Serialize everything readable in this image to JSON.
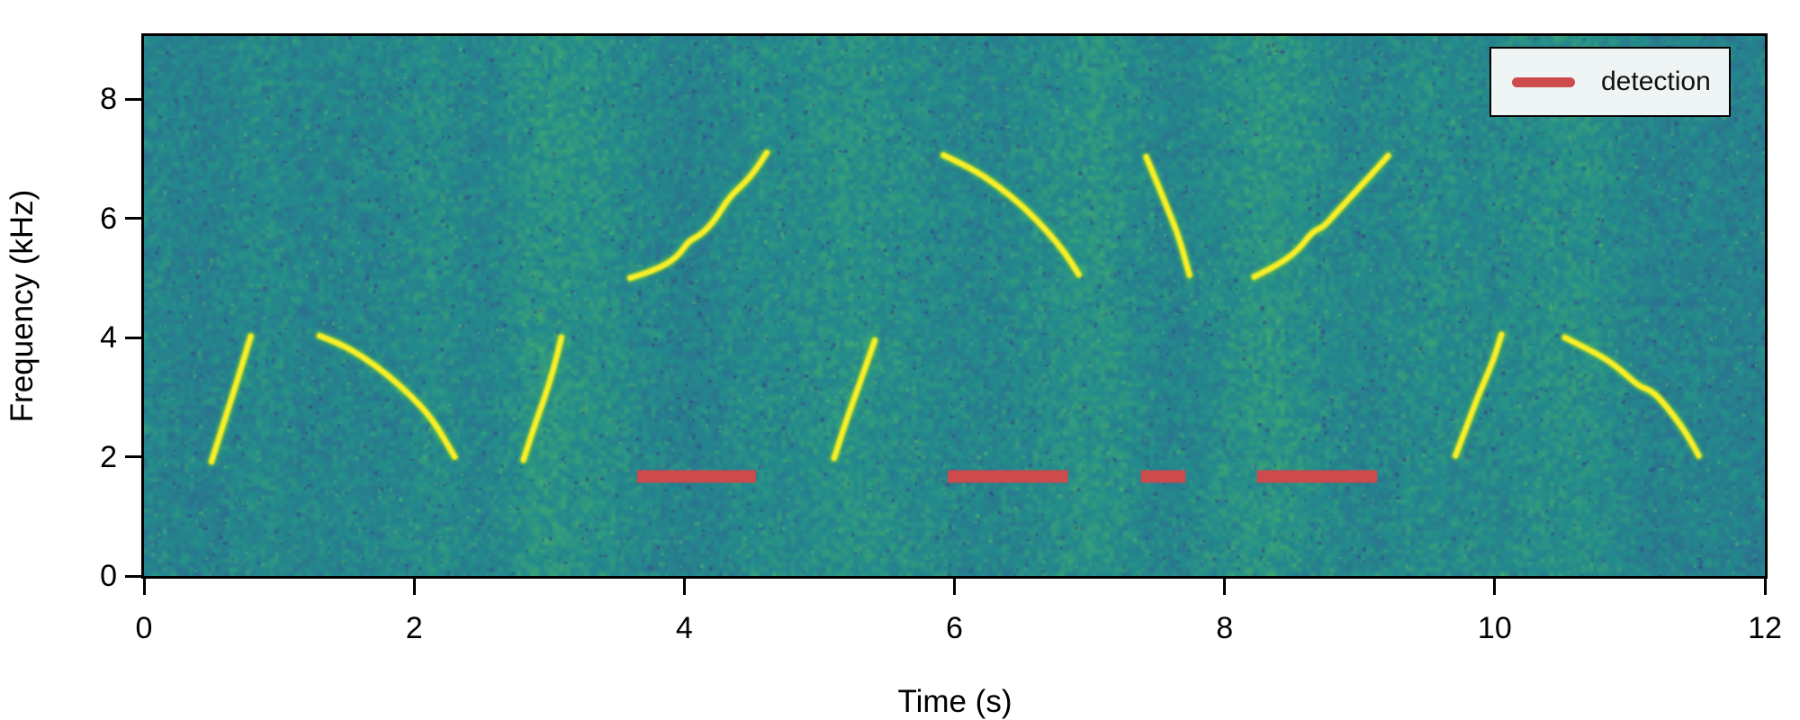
{
  "axes": {
    "xlabel": "Time (s)",
    "ylabel": "Frequency (kHz)",
    "xlim": [
      0,
      12
    ],
    "ylim": [
      0,
      9.06
    ],
    "xticks": [
      0,
      2,
      4,
      6,
      8,
      10,
      12
    ],
    "yticks": [
      0,
      2,
      4,
      6,
      8
    ]
  },
  "legend": {
    "label": "detection",
    "line_color": "#cd4a4d",
    "bg_color": "#eff4f5",
    "border_color": "#000000",
    "position": "upper right"
  },
  "chart_data": {
    "type": "heatmap",
    "subtype": "spectrogram",
    "title": "",
    "xlabel": "Time (s)",
    "ylabel": "Frequency (kHz)",
    "xlim": [
      0,
      12
    ],
    "ylim": [
      0,
      9.06
    ],
    "grid": false,
    "legend_position": "upper right",
    "background": {
      "description": "teal viridis-like noise with subtle vertical banding",
      "base_color": "#248c8d",
      "dark_speck_color": "#3e4a86",
      "bright_speck_color": "#50b973",
      "palette_stops": [
        [
          0.0,
          "#3e4a89"
        ],
        [
          0.35,
          "#2c718e"
        ],
        [
          0.55,
          "#238c8d"
        ],
        [
          0.75,
          "#3fa873"
        ],
        [
          1.0,
          "#82c85a"
        ]
      ]
    },
    "chirp_core_color": "#f8ef2c",
    "chirp_halo_color": "#8ccd3c",
    "series": [
      {
        "name": "chirp-1-upsweep",
        "points": [
          [
            0.5,
            1.92
          ],
          [
            0.56,
            2.35
          ],
          [
            0.63,
            2.85
          ],
          [
            0.7,
            3.35
          ],
          [
            0.75,
            3.72
          ],
          [
            0.79,
            4.02
          ]
        ]
      },
      {
        "name": "chirp-2-downsweep",
        "points": [
          [
            1.3,
            4.03
          ],
          [
            1.45,
            3.9
          ],
          [
            1.62,
            3.68
          ],
          [
            1.8,
            3.38
          ],
          [
            1.98,
            3.02
          ],
          [
            2.14,
            2.62
          ],
          [
            2.3,
            2.0
          ]
        ]
      },
      {
        "name": "chirp-3-upsweep",
        "points": [
          [
            2.81,
            1.95
          ],
          [
            2.88,
            2.45
          ],
          [
            2.96,
            2.95
          ],
          [
            3.03,
            3.45
          ],
          [
            3.09,
            4.0
          ]
        ]
      },
      {
        "name": "chirp-4-upsweep",
        "points": [
          [
            3.6,
            5.0
          ],
          [
            3.78,
            5.12
          ],
          [
            3.95,
            5.35
          ],
          [
            4.03,
            5.62
          ],
          [
            4.12,
            5.72
          ],
          [
            4.22,
            5.95
          ],
          [
            4.33,
            6.35
          ],
          [
            4.45,
            6.6
          ],
          [
            4.53,
            6.82
          ],
          [
            4.61,
            7.1
          ]
        ]
      },
      {
        "name": "chirp-5-upsweep",
        "points": [
          [
            5.11,
            1.98
          ],
          [
            5.19,
            2.55
          ],
          [
            5.27,
            3.05
          ],
          [
            5.34,
            3.5
          ],
          [
            5.41,
            3.95
          ]
        ]
      },
      {
        "name": "chirp-6-downsweep",
        "points": [
          [
            5.92,
            7.06
          ],
          [
            6.12,
            6.85
          ],
          [
            6.32,
            6.55
          ],
          [
            6.52,
            6.18
          ],
          [
            6.7,
            5.75
          ],
          [
            6.82,
            5.42
          ],
          [
            6.92,
            5.06
          ]
        ]
      },
      {
        "name": "chirp-7-downsweep",
        "points": [
          [
            7.42,
            7.03
          ],
          [
            7.5,
            6.6
          ],
          [
            7.58,
            6.15
          ],
          [
            7.66,
            5.7
          ],
          [
            7.74,
            5.05
          ]
        ]
      },
      {
        "name": "chirp-8-upsweep",
        "points": [
          [
            8.22,
            5.02
          ],
          [
            8.4,
            5.22
          ],
          [
            8.55,
            5.48
          ],
          [
            8.65,
            5.78
          ],
          [
            8.73,
            5.85
          ],
          [
            8.82,
            6.08
          ],
          [
            8.95,
            6.4
          ],
          [
            9.08,
            6.72
          ],
          [
            9.21,
            7.05
          ]
        ]
      },
      {
        "name": "chirp-9-upsweep",
        "points": [
          [
            9.71,
            2.02
          ],
          [
            9.79,
            2.5
          ],
          [
            9.86,
            2.92
          ],
          [
            9.93,
            3.3
          ],
          [
            9.99,
            3.62
          ],
          [
            10.05,
            4.05
          ]
        ]
      },
      {
        "name": "chirp-10-downsweep",
        "points": [
          [
            10.52,
            4.0
          ],
          [
            10.68,
            3.82
          ],
          [
            10.84,
            3.62
          ],
          [
            10.96,
            3.4
          ],
          [
            11.07,
            3.18
          ],
          [
            11.15,
            3.12
          ],
          [
            11.22,
            2.98
          ],
          [
            11.33,
            2.68
          ],
          [
            11.43,
            2.35
          ],
          [
            11.51,
            2.02
          ]
        ]
      }
    ],
    "detections": [
      {
        "t_start": 3.65,
        "t_end": 4.53
      },
      {
        "t_start": 5.95,
        "t_end": 6.84
      },
      {
        "t_start": 7.38,
        "t_end": 7.71
      },
      {
        "t_start": 8.24,
        "t_end": 9.13
      }
    ],
    "detection_freq_khz": 1.67,
    "detection_bar_height_khz": 0.21,
    "detection_color": "#cd4a4d"
  }
}
